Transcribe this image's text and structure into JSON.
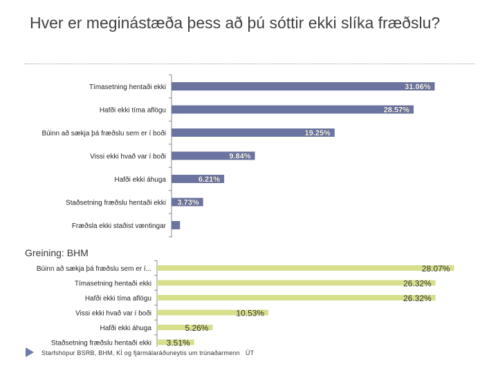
{
  "page": {
    "title": "Hver er meginástæða þess að þú sóttir ekki slíka fræðslu?",
    "subtitle": "Greining: BHM",
    "footer": "Starfshópur BSRB, BHM, KÍ og fjármálaráðuneytis um trúnaðarmenn",
    "footer_tag": "ÚT"
  },
  "chart_data": [
    {
      "type": "bar",
      "orientation": "horizontal",
      "title": "",
      "categories": [
        "Tímasetning hentaði ekki",
        "Hafði ekki tíma aflögu",
        "Búinn að sækja þá fræðslu sem er í boði",
        "Vissi ekki hvað var í boði",
        "Hafði ekki áhuga",
        "Staðsetning fræðslu hentaði ekki",
        "Fræðsla ekki staðist væntingar"
      ],
      "values": [
        31.06,
        28.57,
        19.25,
        9.84,
        6.21,
        3.73,
        1.0
      ],
      "data_labels": [
        "31.06%",
        "28.57%",
        "19.25%",
        "9.84%",
        "6.21%",
        "3.73%",
        ""
      ],
      "colors": {
        "bar": "#6b73a0",
        "label": "#ffffff",
        "axis": "#888888"
      },
      "xlim": [
        0,
        32
      ]
    },
    {
      "type": "bar",
      "orientation": "horizontal",
      "title": "Greining: BHM",
      "categories": [
        "Búinn að sækja þá fræðslu sem er í...",
        "Tímasetning hentaði ekki",
        "Hafði ekki tíma aflögu",
        "Vissi ekki hvað var í boði",
        "Hafði ekki áhuga",
        "Staðsetning fræðslu hentaði ekki"
      ],
      "values": [
        28.07,
        26.32,
        26.32,
        10.53,
        5.26,
        3.51
      ],
      "data_labels": [
        "28.07%",
        "26.32%",
        "26.32%",
        "10.53%",
        "5.26%",
        "3.51%"
      ],
      "colors": {
        "bar": "#d7df8c",
        "label": "#333333",
        "axis": "#888888"
      },
      "xlim": [
        0,
        30
      ]
    }
  ]
}
